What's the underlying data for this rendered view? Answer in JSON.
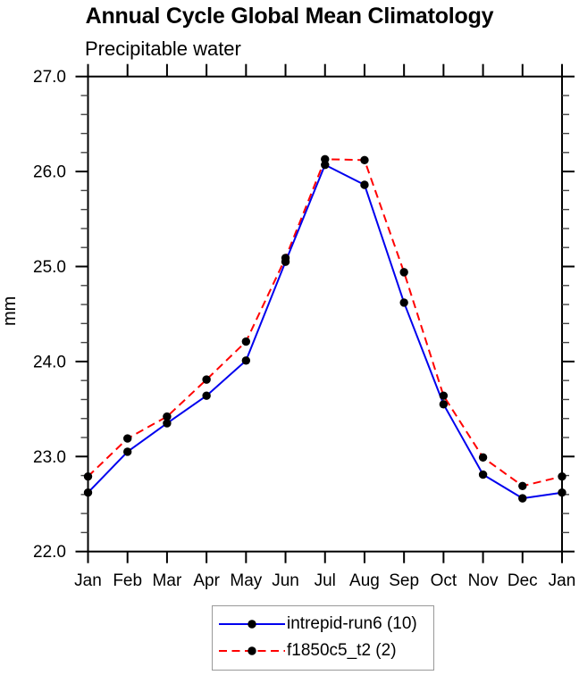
{
  "chart_data": {
    "type": "line",
    "title": "Annual Cycle Global Mean Climatology",
    "subtitle": "Precipitable water",
    "ylabel": "mm",
    "xlabel": "",
    "x_categories": [
      "Jan",
      "Feb",
      "Mar",
      "Apr",
      "May",
      "Jun",
      "Jul",
      "Aug",
      "Sep",
      "Oct",
      "Nov",
      "Dec",
      "Jan"
    ],
    "ylim": [
      22.0,
      27.0
    ],
    "ytick_major_step": 1.0,
    "ytick_minor_step": 0.2,
    "ytick_labels": [
      "22.0",
      "23.0",
      "24.0",
      "25.0",
      "26.0",
      "27.0"
    ],
    "ytick_values": [
      22.0,
      23.0,
      24.0,
      25.0,
      26.0,
      27.0
    ],
    "grid": false,
    "frame": true,
    "tick_direction": "out",
    "axis_color": "#000000",
    "minor_tick_color": "#444444",
    "marker_color": "#000000",
    "legend_position": "bottom-center",
    "legend_border_color": "#999999",
    "series": [
      {
        "name": "intrepid-run6 (10)",
        "color": "#0000ee",
        "line_style": "solid",
        "marker": "circle",
        "values": [
          22.62,
          23.05,
          23.35,
          23.64,
          24.01,
          25.05,
          26.07,
          25.86,
          24.62,
          23.55,
          22.81,
          22.56,
          22.62
        ]
      },
      {
        "name": "f1850c5_t2 (2)",
        "color": "#ff0000",
        "line_style": "dashed",
        "marker": "circle",
        "values": [
          22.79,
          23.19,
          23.42,
          23.81,
          24.21,
          25.09,
          26.13,
          26.12,
          24.94,
          23.64,
          22.99,
          22.69,
          22.79
        ]
      }
    ]
  }
}
